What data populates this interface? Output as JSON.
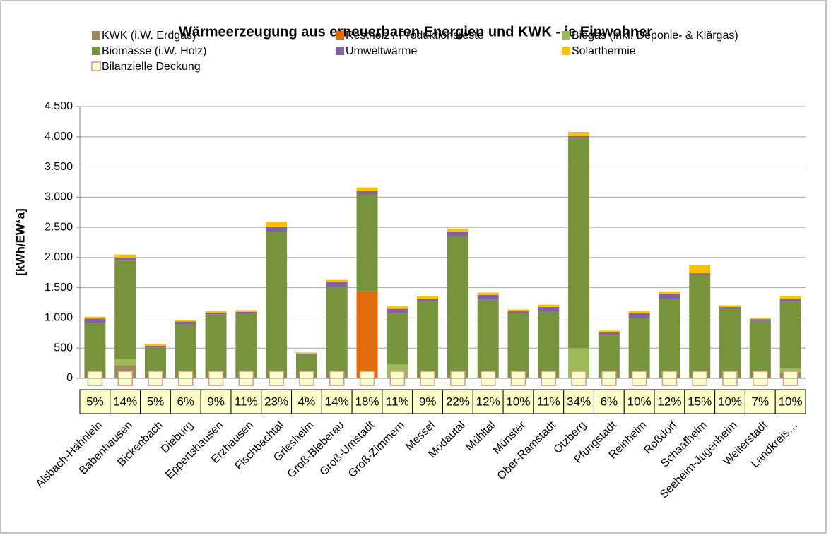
{
  "chart_data": {
    "type": "stacked_bar",
    "title": "Wärmeerzeugung aus erneuerbaren Energien und KWK - je Einwohner",
    "y_label": "[kWh/EW*a]",
    "categories": [
      "Alsbach-Hähnlein",
      "Babenhausen",
      "Bickenbach",
      "Dieburg",
      "Eppertshausen",
      "Erzhausen",
      "Fischbachtal",
      "Griesheim",
      "Groß-Bieberau",
      "Groß-Umstadt",
      "Groß-Zimmern",
      "Messel",
      "Modautal",
      "Mühltal",
      "Münster",
      "Ober-Ramstadt",
      "Otzberg",
      "Pfungstadt",
      "Reinheim",
      "Roßdorf",
      "Schaafheim",
      "Seeheim-Jugenheim",
      "Weiterstadt",
      "Landkreis…"
    ],
    "series": [
      {
        "name": "KWK (i.W. Erdgas)",
        "color": "#9c8a5a",
        "values": [
          0,
          220,
          0,
          0,
          0,
          0,
          0,
          0,
          0,
          0,
          0,
          0,
          0,
          0,
          0,
          0,
          0,
          0,
          0,
          0,
          0,
          0,
          0,
          100
        ]
      },
      {
        "name": "Restholz / Produktionsreste",
        "color": "#e36c0a",
        "values": [
          0,
          0,
          0,
          0,
          0,
          0,
          0,
          0,
          0,
          1440,
          0,
          0,
          0,
          0,
          0,
          0,
          0,
          0,
          0,
          0,
          0,
          0,
          0,
          0
        ]
      },
      {
        "name": "Biogas (inkl. Deponie- & Klärgas)",
        "color": "#9bbb59",
        "values": [
          0,
          100,
          0,
          0,
          0,
          0,
          0,
          0,
          0,
          0,
          230,
          0,
          0,
          0,
          0,
          0,
          500,
          0,
          0,
          0,
          0,
          0,
          0,
          60
        ]
      },
      {
        "name": "Biomasse (i.W. Holz)",
        "color": "#77933c",
        "values": [
          920,
          1630,
          510,
          900,
          1060,
          1070,
          2430,
          390,
          1510,
          1600,
          850,
          1280,
          2350,
          1300,
          1080,
          1100,
          3470,
          720,
          1000,
          1320,
          1710,
          1150,
          950,
          1110
        ]
      },
      {
        "name": "Umweltwärme",
        "color": "#8064a2",
        "values": [
          70,
          50,
          30,
          40,
          30,
          30,
          80,
          20,
          80,
          60,
          70,
          40,
          80,
          80,
          30,
          80,
          40,
          40,
          80,
          80,
          30,
          30,
          30,
          50
        ]
      },
      {
        "name": "Solarthermie",
        "color": "#ffc000",
        "values": [
          30,
          50,
          30,
          30,
          30,
          30,
          80,
          20,
          50,
          60,
          40,
          40,
          50,
          40,
          30,
          40,
          70,
          30,
          40,
          40,
          130,
          30,
          20,
          40
        ]
      },
      {
        "name": "Bilanzielle Deckung",
        "color": "#ffffcc",
        "style": "marker",
        "values": [
          5,
          14,
          5,
          6,
          9,
          11,
          23,
          4,
          14,
          18,
          11,
          9,
          22,
          12,
          10,
          11,
          34,
          6,
          10,
          12,
          15,
          10,
          7,
          10
        ],
        "value_labels": [
          "5%",
          "14%",
          "5%",
          "6%",
          "9%",
          "11%",
          "23%",
          "4%",
          "14%",
          "18%",
          "11%",
          "9%",
          "22%",
          "12%",
          "10%",
          "11%",
          "34%",
          "6%",
          "10%",
          "12%",
          "15%",
          "10%",
          "7%",
          "10%"
        ]
      }
    ],
    "ylim": [
      0,
      4500
    ],
    "yticks": [
      0,
      500,
      {
        "value": 1000,
        "label": "1.000"
      },
      {
        "value": 1500,
        "label": "1.500"
      },
      {
        "value": 2000,
        "label": "2.000"
      },
      {
        "value": 2500,
        "label": "2.500"
      },
      {
        "value": 3000,
        "label": "3.000"
      },
      {
        "value": 3500,
        "label": "3.500"
      },
      {
        "value": 4000,
        "label": "4.000"
      },
      {
        "value": 4500,
        "label": "4.500"
      }
    ],
    "grid": true
  }
}
